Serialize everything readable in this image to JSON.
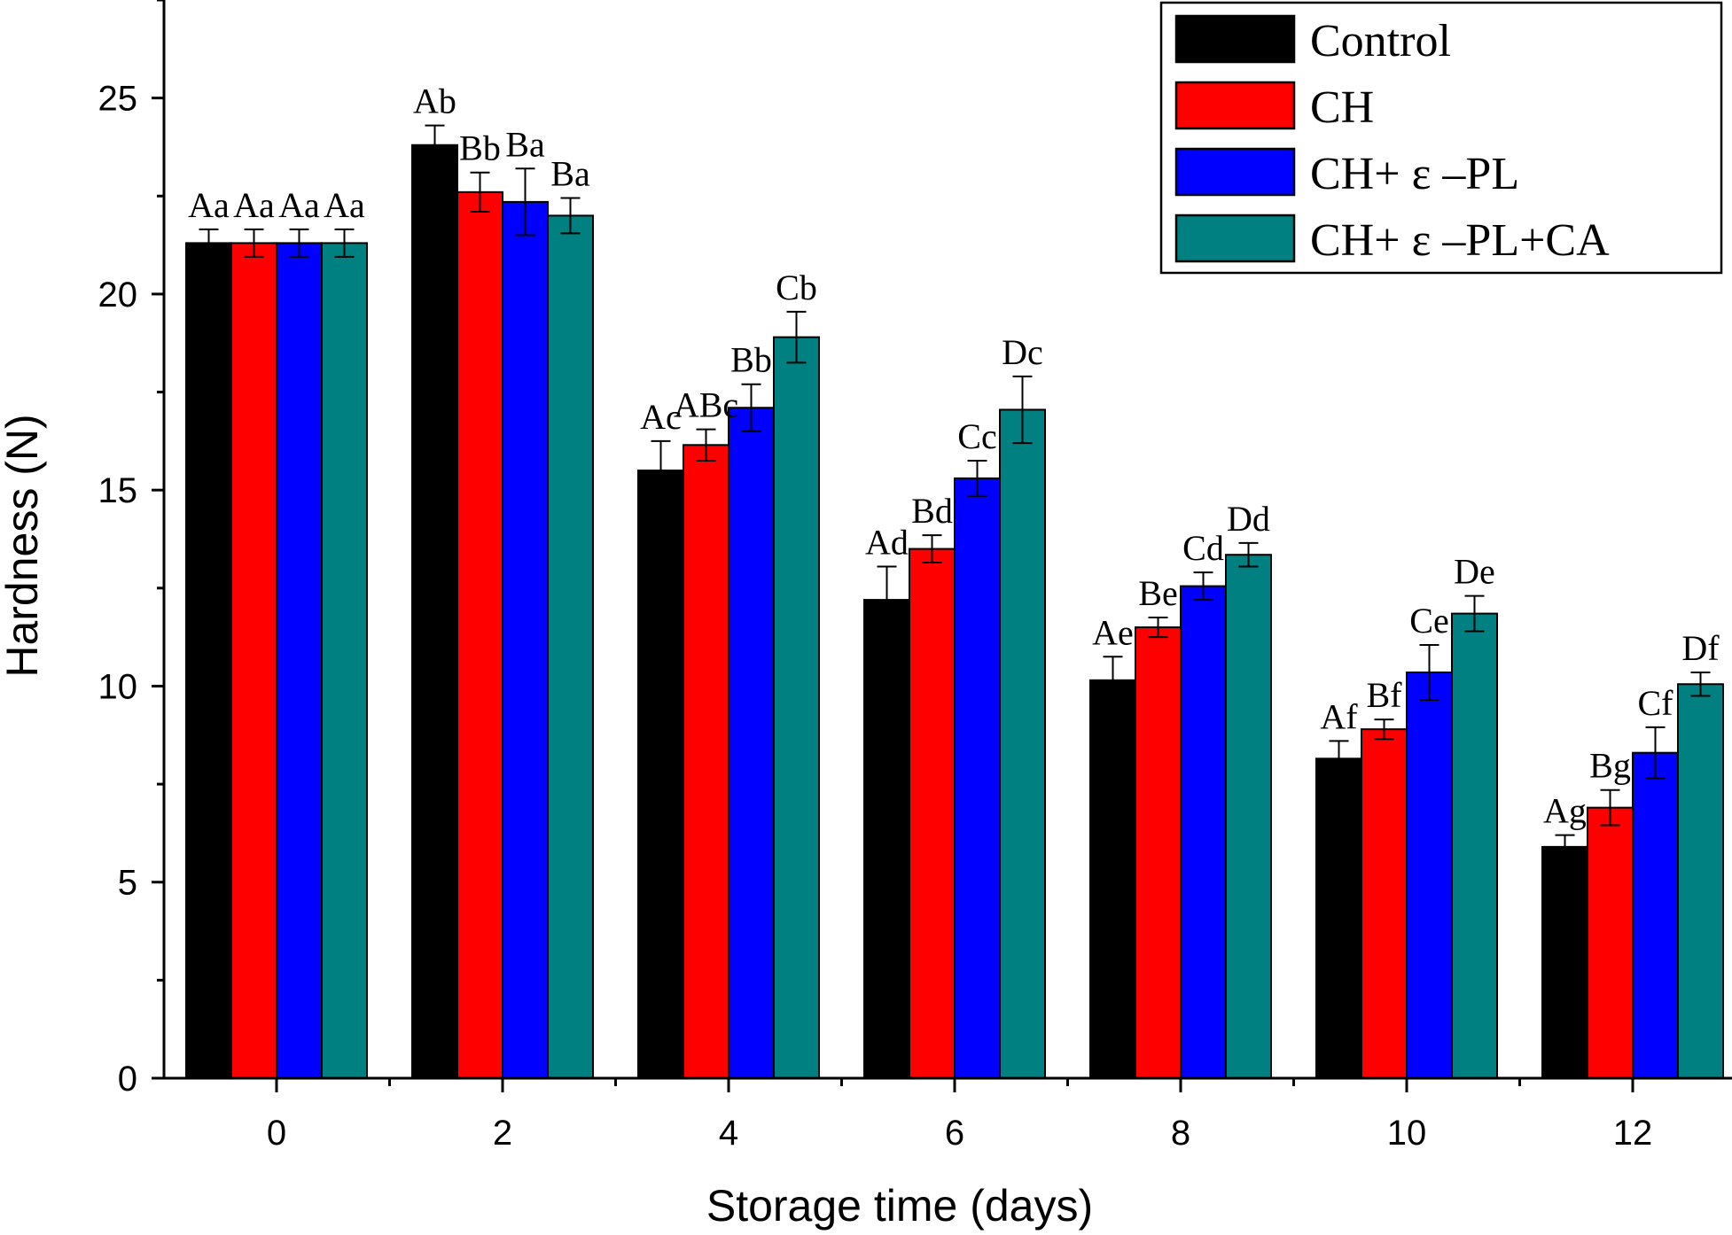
{
  "chart_data": {
    "type": "bar",
    "title": "",
    "xlabel": "Storage time (days)",
    "ylabel": "Hardness (N)",
    "ylim": [
      0,
      27.5
    ],
    "yticks": [
      0,
      5,
      10,
      15,
      20,
      25
    ],
    "categories": [
      "0",
      "2",
      "4",
      "6",
      "8",
      "10",
      "12"
    ],
    "legend_position": "top-right",
    "grid": false,
    "series": [
      {
        "name": "Control",
        "color": "#000000",
        "values": [
          21.3,
          23.8,
          15.5,
          12.2,
          10.15,
          8.15,
          5.9
        ],
        "errors": [
          0.35,
          0.5,
          0.75,
          0.85,
          0.6,
          0.45,
          0.3
        ],
        "labels": [
          "Aa",
          "Ab",
          "Ac",
          "Ad",
          "Ae",
          "Af",
          "Ag"
        ]
      },
      {
        "name": "CH",
        "color": "#ff0000",
        "values": [
          21.3,
          22.6,
          16.15,
          13.5,
          11.5,
          8.9,
          6.9
        ],
        "errors": [
          0.35,
          0.5,
          0.4,
          0.35,
          0.25,
          0.25,
          0.45
        ],
        "labels": [
          "Aa",
          "Bb",
          "ABc",
          "Bd",
          "Be",
          "Bf",
          "Bg"
        ]
      },
      {
        "name": "CH+ ε –PL",
        "color": "#0000ff",
        "values": [
          21.3,
          22.35,
          17.1,
          15.3,
          12.55,
          10.35,
          8.3
        ],
        "errors": [
          0.35,
          0.85,
          0.6,
          0.45,
          0.35,
          0.7,
          0.65
        ],
        "labels": [
          "Aa",
          "Ba",
          "Bb",
          "Cc",
          "Cd",
          "Ce",
          "Cf"
        ]
      },
      {
        "name": "CH+ ε –PL+CA",
        "color": "#008080",
        "values": [
          21.3,
          22.0,
          18.9,
          17.05,
          13.35,
          11.85,
          10.05
        ],
        "errors": [
          0.35,
          0.45,
          0.65,
          0.85,
          0.3,
          0.45,
          0.3
        ],
        "labels": [
          "Aa",
          "Ba",
          "Cb",
          "Dc",
          "Dd",
          "De",
          "Df"
        ]
      }
    ]
  }
}
